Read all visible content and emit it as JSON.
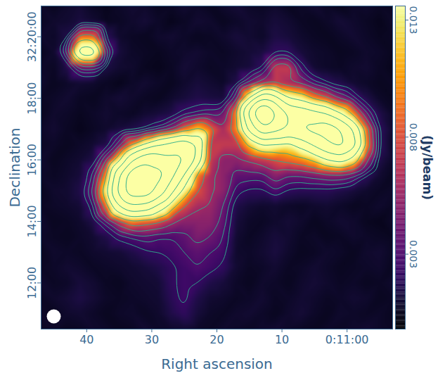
{
  "chart_data": {
    "type": "heatmap",
    "xlabel": "Right ascension",
    "ylabel": "Declination",
    "xlim": [
      47,
      -7
    ],
    "ylim": [
      10.5,
      21
    ],
    "xticks": [
      40,
      30,
      20,
      10,
      {
        "value": 0,
        "label": "0:11:00"
      }
    ],
    "yticks": [
      {
        "value": 12,
        "label": "12:00"
      },
      {
        "value": 14,
        "label": "14:00"
      },
      {
        "value": 16,
        "label": "16:00"
      },
      {
        "value": 18,
        "label": "18:00"
      },
      {
        "value": 20,
        "label": "32:20:00"
      }
    ],
    "x": [
      47,
      45,
      43,
      41,
      39,
      37,
      35,
      33,
      31,
      29,
      27,
      25,
      23,
      21,
      19,
      17,
      15,
      13,
      11,
      9,
      7,
      5,
      3,
      1,
      -1,
      -3,
      -5,
      -7
    ],
    "y": [
      21,
      20.5,
      20,
      19.5,
      19,
      18.5,
      18,
      17.5,
      17,
      16.5,
      16,
      15.5,
      15,
      14.5,
      14,
      13.5,
      13,
      12.5,
      12,
      11.5,
      11,
      10.5
    ],
    "cells": [
      [
        0.0008,
        0.0006,
        0.0009,
        0.0011,
        0.0007,
        0.0005,
        0.0008,
        0.001,
        0.0009,
        0.0006,
        0.0007,
        0.001,
        0.0008,
        0.0006,
        0.0009,
        0.0011,
        0.0008,
        0.0007,
        0.0009,
        0.0006,
        0.0008,
        0.001,
        0.0007,
        0.0005,
        0.0008,
        0.0009,
        0.0007,
        0.0006
      ],
      [
        0.0007,
        0.0009,
        0.001,
        0.0013,
        0.001,
        0.0006,
        0.0007,
        0.0009,
        0.0011,
        0.0008,
        0.0005,
        0.0007,
        0.001,
        0.0009,
        0.0006,
        0.0008,
        0.001,
        0.0009,
        0.0012,
        0.001,
        0.0007,
        0.0006,
        0.0008,
        0.0011,
        0.0009,
        0.0007,
        0.0005,
        0.0008
      ],
      [
        0.0009,
        0.0008,
        0.0015,
        0.009,
        0.009,
        0.0018,
        0.0009,
        0.0007,
        0.0006,
        0.0009,
        0.001,
        0.0008,
        0.0006,
        0.0007,
        0.0009,
        0.0012,
        0.001,
        0.0008,
        0.0014,
        0.0012,
        0.0009,
        0.0007,
        0.0006,
        0.0008,
        0.001,
        0.0008,
        0.0006,
        0.0007
      ],
      [
        0.0006,
        0.0009,
        0.004,
        0.02,
        0.02,
        0.004,
        0.0012,
        0.0008,
        0.0007,
        0.0006,
        0.0008,
        0.0009,
        0.001,
        0.0008,
        0.0007,
        0.0009,
        0.0011,
        0.0013,
        0.002,
        0.002,
        0.0012,
        0.0009,
        0.0008,
        0.0006,
        0.0007,
        0.0009,
        0.0008,
        0.0006
      ],
      [
        0.0008,
        0.0007,
        0.0015,
        0.004,
        0.004,
        0.0014,
        0.001,
        0.0009,
        0.0006,
        0.0005,
        0.0007,
        0.0011,
        0.0009,
        0.0007,
        0.0008,
        0.001,
        0.0012,
        0.002,
        0.007,
        0.007,
        0.0025,
        0.001,
        0.0008,
        0.0007,
        0.0009,
        0.001,
        0.0007,
        0.0005
      ],
      [
        0.0009,
        0.0006,
        0.0008,
        0.001,
        0.0009,
        0.0007,
        0.0005,
        0.0008,
        0.001,
        0.0008,
        0.0006,
        0.0009,
        0.0012,
        0.001,
        0.0008,
        0.0015,
        0.004,
        0.006,
        0.007,
        0.006,
        0.005,
        0.003,
        0.002,
        0.0015,
        0.001,
        0.0008,
        0.0006,
        0.0007
      ],
      [
        0.0007,
        0.0008,
        0.001,
        0.0007,
        0.0006,
        0.0009,
        0.0011,
        0.0009,
        0.0007,
        0.0006,
        0.0009,
        0.0012,
        0.0015,
        0.0013,
        0.0012,
        0.004,
        0.015,
        0.03,
        0.025,
        0.016,
        0.014,
        0.01,
        0.008,
        0.005,
        0.003,
        0.0015,
        0.0008,
        0.0006
      ],
      [
        0.0006,
        0.0009,
        0.0008,
        0.0006,
        0.0008,
        0.001,
        0.0008,
        0.0007,
        0.001,
        0.0012,
        0.0015,
        0.0025,
        0.003,
        0.0035,
        0.004,
        0.01,
        0.035,
        0.065,
        0.045,
        0.03,
        0.028,
        0.025,
        0.022,
        0.016,
        0.01,
        0.004,
        0.0015,
        0.0008
      ],
      [
        0.0008,
        0.001,
        0.0007,
        0.0005,
        0.0007,
        0.0009,
        0.0012,
        0.0015,
        0.002,
        0.003,
        0.005,
        0.009,
        0.012,
        0.009,
        0.006,
        0.01,
        0.025,
        0.04,
        0.035,
        0.03,
        0.032,
        0.035,
        0.038,
        0.032,
        0.022,
        0.009,
        0.002,
        0.0009
      ],
      [
        0.0007,
        0.0008,
        0.0006,
        0.0008,
        0.001,
        0.0015,
        0.004,
        0.01,
        0.016,
        0.022,
        0.025,
        0.028,
        0.022,
        0.007,
        0.007,
        0.007,
        0.012,
        0.016,
        0.015,
        0.014,
        0.018,
        0.024,
        0.03,
        0.035,
        0.026,
        0.01,
        0.002,
        0.0007
      ],
      [
        0.0009,
        0.0006,
        0.0008,
        0.001,
        0.0015,
        0.005,
        0.014,
        0.03,
        0.04,
        0.038,
        0.035,
        0.032,
        0.02,
        0.007,
        0.005,
        0.005,
        0.006,
        0.007,
        0.008,
        0.009,
        0.01,
        0.012,
        0.016,
        0.018,
        0.014,
        0.006,
        0.0015,
        0.0008
      ],
      [
        0.0008,
        0.0007,
        0.0009,
        0.0012,
        0.003,
        0.01,
        0.03,
        0.055,
        0.06,
        0.05,
        0.035,
        0.022,
        0.01,
        0.006,
        0.005,
        0.0035,
        0.0035,
        0.0035,
        0.005,
        0.004,
        0.004,
        0.0045,
        0.005,
        0.005,
        0.004,
        0.002,
        0.001,
        0.0006
      ],
      [
        0.0006,
        0.0009,
        0.001,
        0.0015,
        0.004,
        0.014,
        0.035,
        0.055,
        0.055,
        0.04,
        0.025,
        0.014,
        0.008,
        0.006,
        0.005,
        0.0025,
        0.002,
        0.002,
        0.003,
        0.002,
        0.0018,
        0.0018,
        0.0018,
        0.0015,
        0.0012,
        0.0009,
        0.0007,
        0.0008
      ],
      [
        0.0007,
        0.0008,
        0.0009,
        0.0011,
        0.0025,
        0.009,
        0.022,
        0.03,
        0.028,
        0.02,
        0.013,
        0.008,
        0.006,
        0.0055,
        0.004,
        0.0015,
        0.0011,
        0.0009,
        0.001,
        0.0008,
        0.0007,
        0.0009,
        0.001,
        0.0008,
        0.0006,
        0.0007,
        0.0009,
        0.0007
      ],
      [
        0.0009,
        0.0006,
        0.0007,
        0.0009,
        0.0015,
        0.0035,
        0.007,
        0.01,
        0.009,
        0.008,
        0.006,
        0.005,
        0.005,
        0.005,
        0.0035,
        0.0012,
        0.0008,
        0.0007,
        0.0009,
        0.0011,
        0.0009,
        0.0006,
        0.0008,
        0.001,
        0.0009,
        0.0006,
        0.0005,
        0.0008
      ],
      [
        0.0008,
        0.0007,
        0.0006,
        0.0008,
        0.001,
        0.0015,
        0.0025,
        0.003,
        0.0035,
        0.003,
        0.003,
        0.0035,
        0.0045,
        0.004,
        0.003,
        0.001,
        0.0007,
        0.0009,
        0.0012,
        0.001,
        0.0007,
        0.0008,
        0.0006,
        0.0007,
        0.0009,
        0.0008,
        0.0007,
        0.0006
      ],
      [
        0.0006,
        0.0009,
        0.0008,
        0.0007,
        0.0009,
        0.001,
        0.0011,
        0.0015,
        0.002,
        0.0022,
        0.0025,
        0.003,
        0.0035,
        0.003,
        0.0025,
        0.0009,
        0.0008,
        0.001,
        0.0013,
        0.0009,
        0.0006,
        0.0007,
        0.0009,
        0.0008,
        0.0006,
        0.0009,
        0.001,
        0.0007
      ],
      [
        0.0007,
        0.0008,
        0.001,
        0.0009,
        0.0007,
        0.0008,
        0.0009,
        0.001,
        0.0012,
        0.0015,
        0.002,
        0.0025,
        0.003,
        0.0025,
        0.002,
        0.001,
        0.0007,
        0.0008,
        0.001,
        0.0007,
        0.0008,
        0.001,
        0.0008,
        0.0006,
        0.0007,
        0.0008,
        0.0009,
        0.0006
      ],
      [
        0.0009,
        0.0007,
        0.0008,
        0.0012,
        0.001,
        0.0007,
        0.0006,
        0.0009,
        0.001,
        0.0011,
        0.002,
        0.0025,
        0.0022,
        0.0015,
        0.0012,
        0.0008,
        0.0006,
        0.0009,
        0.0008,
        0.0006,
        0.0009,
        0.0011,
        0.0009,
        0.0007,
        0.0008,
        0.0006,
        0.0007,
        0.0009
      ],
      [
        0.0007,
        0.0009,
        0.0011,
        0.0014,
        0.0011,
        0.0008,
        0.0007,
        0.0008,
        0.0009,
        0.001,
        0.0018,
        0.0025,
        0.0015,
        0.001,
        0.0009,
        0.0007,
        0.0008,
        0.001,
        0.0007,
        0.0008,
        0.001,
        0.0009,
        0.0007,
        0.0008,
        0.001,
        0.0009,
        0.0006,
        0.0007
      ],
      [
        0.0008,
        0.0006,
        0.0009,
        0.001,
        0.0008,
        0.0006,
        0.0008,
        0.0009,
        0.0007,
        0.0009,
        0.0015,
        0.002,
        0.0012,
        0.0008,
        0.0007,
        0.0009,
        0.001,
        0.0008,
        0.0006,
        0.0009,
        0.0011,
        0.0008,
        0.0006,
        0.0009,
        0.0008,
        0.0007,
        0.0008,
        0.0006
      ],
      [
        0.0007,
        0.0008,
        0.0006,
        0.0007,
        0.0009,
        0.0008,
        0.0006,
        0.0007,
        0.001,
        0.0008,
        0.0009,
        0.001,
        0.0008,
        0.0007,
        0.0009,
        0.0008,
        0.0007,
        0.0009,
        0.001,
        0.0008,
        0.0007,
        0.0006,
        0.0008,
        0.0007,
        0.0009,
        0.001,
        0.0008,
        0.0007
      ]
    ],
    "contour_levels": [
      0.0022,
      0.003,
      0.004,
      0.0057,
      0.008,
      0.0113,
      0.016,
      0.0226,
      0.032,
      0.045,
      0.064
    ],
    "colorbar": {
      "label": "(Jy/beam)",
      "range": [
        -0.0002,
        0.0136
      ],
      "ticks": [
        0.003,
        0.008,
        0.013
      ]
    }
  }
}
